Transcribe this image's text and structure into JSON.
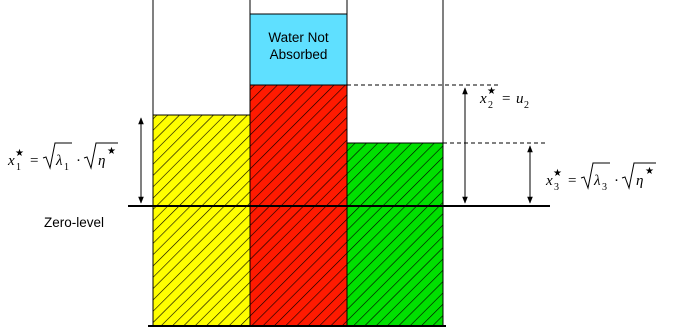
{
  "labels": {
    "water_box_line1": "Water Not",
    "water_box_line2": "Absorbed",
    "zero_level": "Zero-level"
  },
  "equations": {
    "x1": {
      "var": "x",
      "sub": "1",
      "star": "★",
      "equals": "=",
      "radicand1": "λ",
      "radicand1_sub": "1",
      "dot": "·",
      "radicand2": "η",
      "radicand2_star": "★"
    },
    "x2": {
      "var": "x",
      "sub": "2",
      "star": "★",
      "equals": "=",
      "rhs": "u",
      "rhs_sub": "2"
    },
    "x3": {
      "var": "x",
      "sub": "3",
      "star": "★",
      "equals": "=",
      "radicand1": "λ",
      "radicand1_sub": "3",
      "dot": "·",
      "radicand2": "η",
      "radicand2_star": "★"
    }
  },
  "colors": {
    "yellow": "#ffff00",
    "red": "#ff1a00",
    "green": "#00e000",
    "cyan": "#5fe0ff",
    "stroke": "#000000"
  }
}
